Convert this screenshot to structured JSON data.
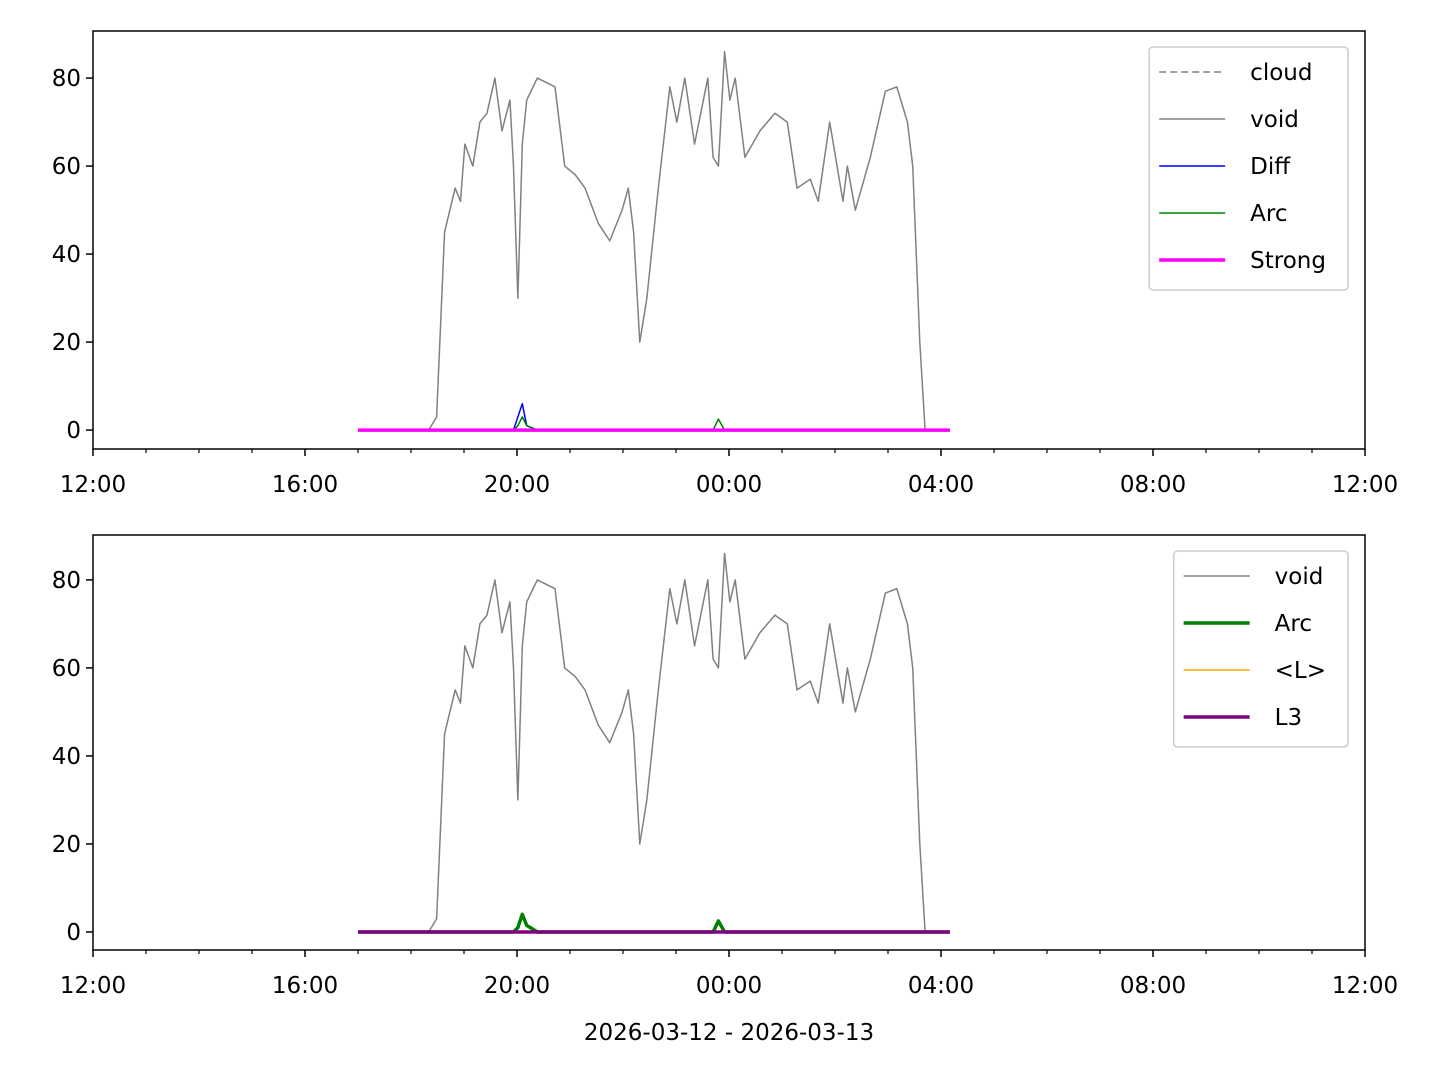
{
  "chart_data": [
    {
      "type": "line",
      "x": [
        300,
        340,
        380,
        389,
        398,
        404,
        410,
        416,
        421,
        430,
        438,
        446,
        455,
        463,
        472,
        476,
        481,
        486,
        491,
        503,
        513,
        523,
        534,
        546,
        557,
        572,
        585,
        599,
        606,
        612,
        619,
        627,
        640,
        653,
        661,
        670,
        681,
        688,
        696,
        702,
        708,
        715,
        721,
        727,
        738,
        755,
        772,
        786,
        797,
        812,
        821,
        834,
        849,
        854,
        863,
        880,
        897,
        910,
        922,
        928,
        936,
        942,
        970
      ],
      "series": [
        {
          "name": "cloud",
          "color": "gray",
          "linewidth": 1.5,
          "linestyle": "dashed",
          "values": [
            0,
            0,
            0,
            0,
            0,
            0,
            0,
            0,
            0,
            0,
            0,
            0,
            0,
            0,
            0,
            0,
            0,
            0,
            0,
            0,
            0,
            0,
            0,
            0,
            0,
            0,
            0,
            0,
            0,
            0,
            0,
            0,
            0,
            0,
            0,
            0,
            0,
            0,
            0,
            0,
            0,
            0,
            0,
            0,
            0,
            0,
            0,
            0,
            0,
            0,
            0,
            0,
            0,
            0,
            0,
            0,
            0,
            0,
            0,
            0,
            0,
            0,
            0
          ]
        },
        {
          "name": "void",
          "color": "gray",
          "linewidth": 1.5,
          "linestyle": "solid",
          "values": [
            0,
            0,
            0,
            3,
            45,
            50,
            55,
            52,
            65,
            60,
            70,
            72,
            80,
            68,
            75,
            60,
            30,
            65,
            75,
            80,
            79,
            78,
            60,
            58,
            55,
            47,
            43,
            50,
            55,
            45,
            20,
            30,
            55,
            78,
            70,
            80,
            65,
            72,
            80,
            62,
            60,
            86,
            75,
            80,
            62,
            68,
            72,
            70,
            55,
            57,
            52,
            70,
            52,
            60,
            50,
            62,
            77,
            78,
            70,
            60,
            20,
            0,
            0
          ]
        },
        {
          "name": "Diff",
          "color": "blue",
          "linewidth": 1.5,
          "linestyle": "solid",
          "values": [
            0,
            0,
            0,
            0,
            0,
            0,
            0,
            0,
            0,
            0,
            0,
            0,
            0,
            0,
            0,
            0,
            3,
            6,
            1,
            0,
            0,
            0,
            0,
            0,
            0,
            0,
            0,
            0,
            0,
            0,
            0,
            0,
            0,
            0,
            0,
            0,
            0,
            0,
            0,
            0,
            0,
            0,
            0,
            0,
            0,
            0,
            0,
            0,
            0,
            0,
            0,
            0,
            0,
            0,
            0,
            0,
            0,
            0,
            0,
            0,
            0,
            0,
            0
          ]
        },
        {
          "name": "Arc",
          "color": "green",
          "linewidth": 1.5,
          "linestyle": "solid",
          "values": [
            0,
            0,
            0,
            0,
            0,
            0,
            0,
            0,
            0,
            0,
            0,
            0,
            0,
            0,
            0,
            0,
            1,
            3,
            1,
            0,
            0,
            0,
            0,
            0,
            0,
            0,
            0,
            0,
            0,
            0,
            0,
            0,
            0,
            0,
            0,
            0,
            0,
            0,
            0,
            0,
            2.5,
            0,
            0,
            0,
            0,
            0,
            0,
            0,
            0,
            0,
            0,
            0,
            0,
            0,
            0,
            0,
            0,
            0,
            0,
            0,
            0,
            0,
            0
          ]
        },
        {
          "name": "Strong",
          "color": "magenta",
          "linewidth": 3.5,
          "linestyle": "solid",
          "values": [
            0,
            0,
            0,
            0,
            0,
            0,
            0,
            0,
            0,
            0,
            0,
            0,
            0,
            0,
            0,
            0,
            0,
            0,
            0,
            0,
            0,
            0,
            0,
            0,
            0,
            0,
            0,
            0,
            0,
            0,
            0,
            0,
            0,
            0,
            0,
            0,
            0,
            0,
            0,
            0,
            0,
            0,
            0,
            0,
            0,
            0,
            0,
            0,
            0,
            0,
            0,
            0,
            0,
            0,
            0,
            0,
            0,
            0,
            0,
            0,
            0,
            0,
            0
          ]
        }
      ],
      "xlim": [
        0,
        1440
      ],
      "xticks": [
        {
          "value": 0,
          "label": "12:00"
        },
        {
          "value": 240,
          "label": "16:00"
        },
        {
          "value": 480,
          "label": "20:00"
        },
        {
          "value": 720,
          "label": "00:00"
        },
        {
          "value": 960,
          "label": "04:00"
        },
        {
          "value": 1200,
          "label": "08:00"
        },
        {
          "value": 1440,
          "label": "12:00"
        }
      ],
      "xminorticks": [
        60,
        120,
        180,
        300,
        360,
        420,
        540,
        600,
        660,
        780,
        840,
        900,
        1020,
        1080,
        1140,
        1260,
        1320,
        1380
      ],
      "ylim": [
        -4.3,
        90.7
      ],
      "yticks": [
        0,
        20,
        40,
        60,
        80
      ],
      "legend": "upper right"
    },
    {
      "type": "line",
      "x": [
        300,
        340,
        380,
        389,
        398,
        404,
        410,
        416,
        421,
        430,
        438,
        446,
        455,
        463,
        472,
        476,
        481,
        486,
        491,
        503,
        513,
        523,
        534,
        546,
        557,
        572,
        585,
        599,
        606,
        612,
        619,
        627,
        640,
        653,
        661,
        670,
        681,
        688,
        696,
        702,
        708,
        715,
        721,
        727,
        738,
        755,
        772,
        786,
        797,
        812,
        821,
        834,
        849,
        854,
        863,
        880,
        897,
        910,
        922,
        928,
        936,
        942,
        970
      ],
      "series": [
        {
          "name": "void",
          "color": "gray",
          "linewidth": 1.5,
          "linestyle": "solid",
          "values": [
            0,
            0,
            0,
            3,
            45,
            50,
            55,
            52,
            65,
            60,
            70,
            72,
            80,
            68,
            75,
            60,
            30,
            65,
            75,
            80,
            79,
            78,
            60,
            58,
            55,
            47,
            43,
            50,
            55,
            45,
            20,
            30,
            55,
            78,
            70,
            80,
            65,
            72,
            80,
            62,
            60,
            86,
            75,
            80,
            62,
            68,
            72,
            70,
            55,
            57,
            52,
            70,
            52,
            60,
            50,
            62,
            77,
            78,
            70,
            60,
            20,
            0,
            0
          ]
        },
        {
          "name": "Arc",
          "color": "green",
          "linewidth": 3.5,
          "linestyle": "solid",
          "values": [
            0,
            0,
            0,
            0,
            0,
            0,
            0,
            0,
            0,
            0,
            0,
            0,
            0,
            0,
            0,
            0,
            1,
            4,
            1.5,
            0,
            0,
            0,
            0,
            0,
            0,
            0,
            0,
            0,
            0,
            0,
            0,
            0,
            0,
            0,
            0,
            0,
            0,
            0,
            0,
            0,
            2.5,
            0,
            0,
            0,
            0,
            0,
            0,
            0,
            0,
            0,
            0,
            0,
            0,
            0,
            0,
            0,
            0,
            0,
            0,
            0,
            0,
            0,
            0
          ]
        },
        {
          "name": "<L>",
          "color": "orange",
          "linewidth": 1.5,
          "linestyle": "solid",
          "values": [
            0,
            0,
            0,
            0,
            0,
            0,
            0,
            0,
            0,
            0,
            0,
            0,
            0,
            0,
            0,
            0,
            0,
            0,
            0,
            0,
            0,
            0,
            0,
            0,
            0,
            0,
            0,
            0,
            0,
            0,
            0,
            0,
            0,
            0,
            0,
            0,
            0,
            0,
            0,
            0,
            0,
            0,
            0,
            0,
            0,
            0,
            0,
            0,
            0,
            0,
            0,
            0,
            0,
            0,
            0,
            0,
            0,
            0,
            0,
            0,
            0,
            0,
            0
          ]
        },
        {
          "name": "L3",
          "color": "purple",
          "linewidth": 3.5,
          "linestyle": "solid",
          "values": [
            0,
            0,
            0,
            0,
            0,
            0,
            0,
            0,
            0,
            0,
            0,
            0,
            0,
            0,
            0,
            0,
            0,
            0,
            0,
            0,
            0,
            0,
            0,
            0,
            0,
            0,
            0,
            0,
            0,
            0,
            0,
            0,
            0,
            0,
            0,
            0,
            0,
            0,
            0,
            0,
            0,
            0,
            0,
            0,
            0,
            0,
            0,
            0,
            0,
            0,
            0,
            0,
            0,
            0,
            0,
            0,
            0,
            0,
            0,
            0,
            0,
            0,
            0
          ]
        }
      ],
      "xlim": [
        0,
        1440
      ],
      "xticks": [
        {
          "value": 0,
          "label": "12:00"
        },
        {
          "value": 240,
          "label": "16:00"
        },
        {
          "value": 480,
          "label": "20:00"
        },
        {
          "value": 720,
          "label": "00:00"
        },
        {
          "value": 960,
          "label": "04:00"
        },
        {
          "value": 1200,
          "label": "08:00"
        },
        {
          "value": 1440,
          "label": "12:00"
        }
      ],
      "xminorticks": [
        60,
        120,
        180,
        300,
        360,
        420,
        540,
        600,
        660,
        780,
        840,
        900,
        1020,
        1080,
        1140,
        1260,
        1320,
        1380
      ],
      "ylim": [
        -4.1,
        90.2
      ],
      "yticks": [
        0,
        20,
        40,
        60,
        80
      ],
      "legend": "upper right",
      "xlabel": "2026-03-12 - 2026-03-13"
    }
  ]
}
